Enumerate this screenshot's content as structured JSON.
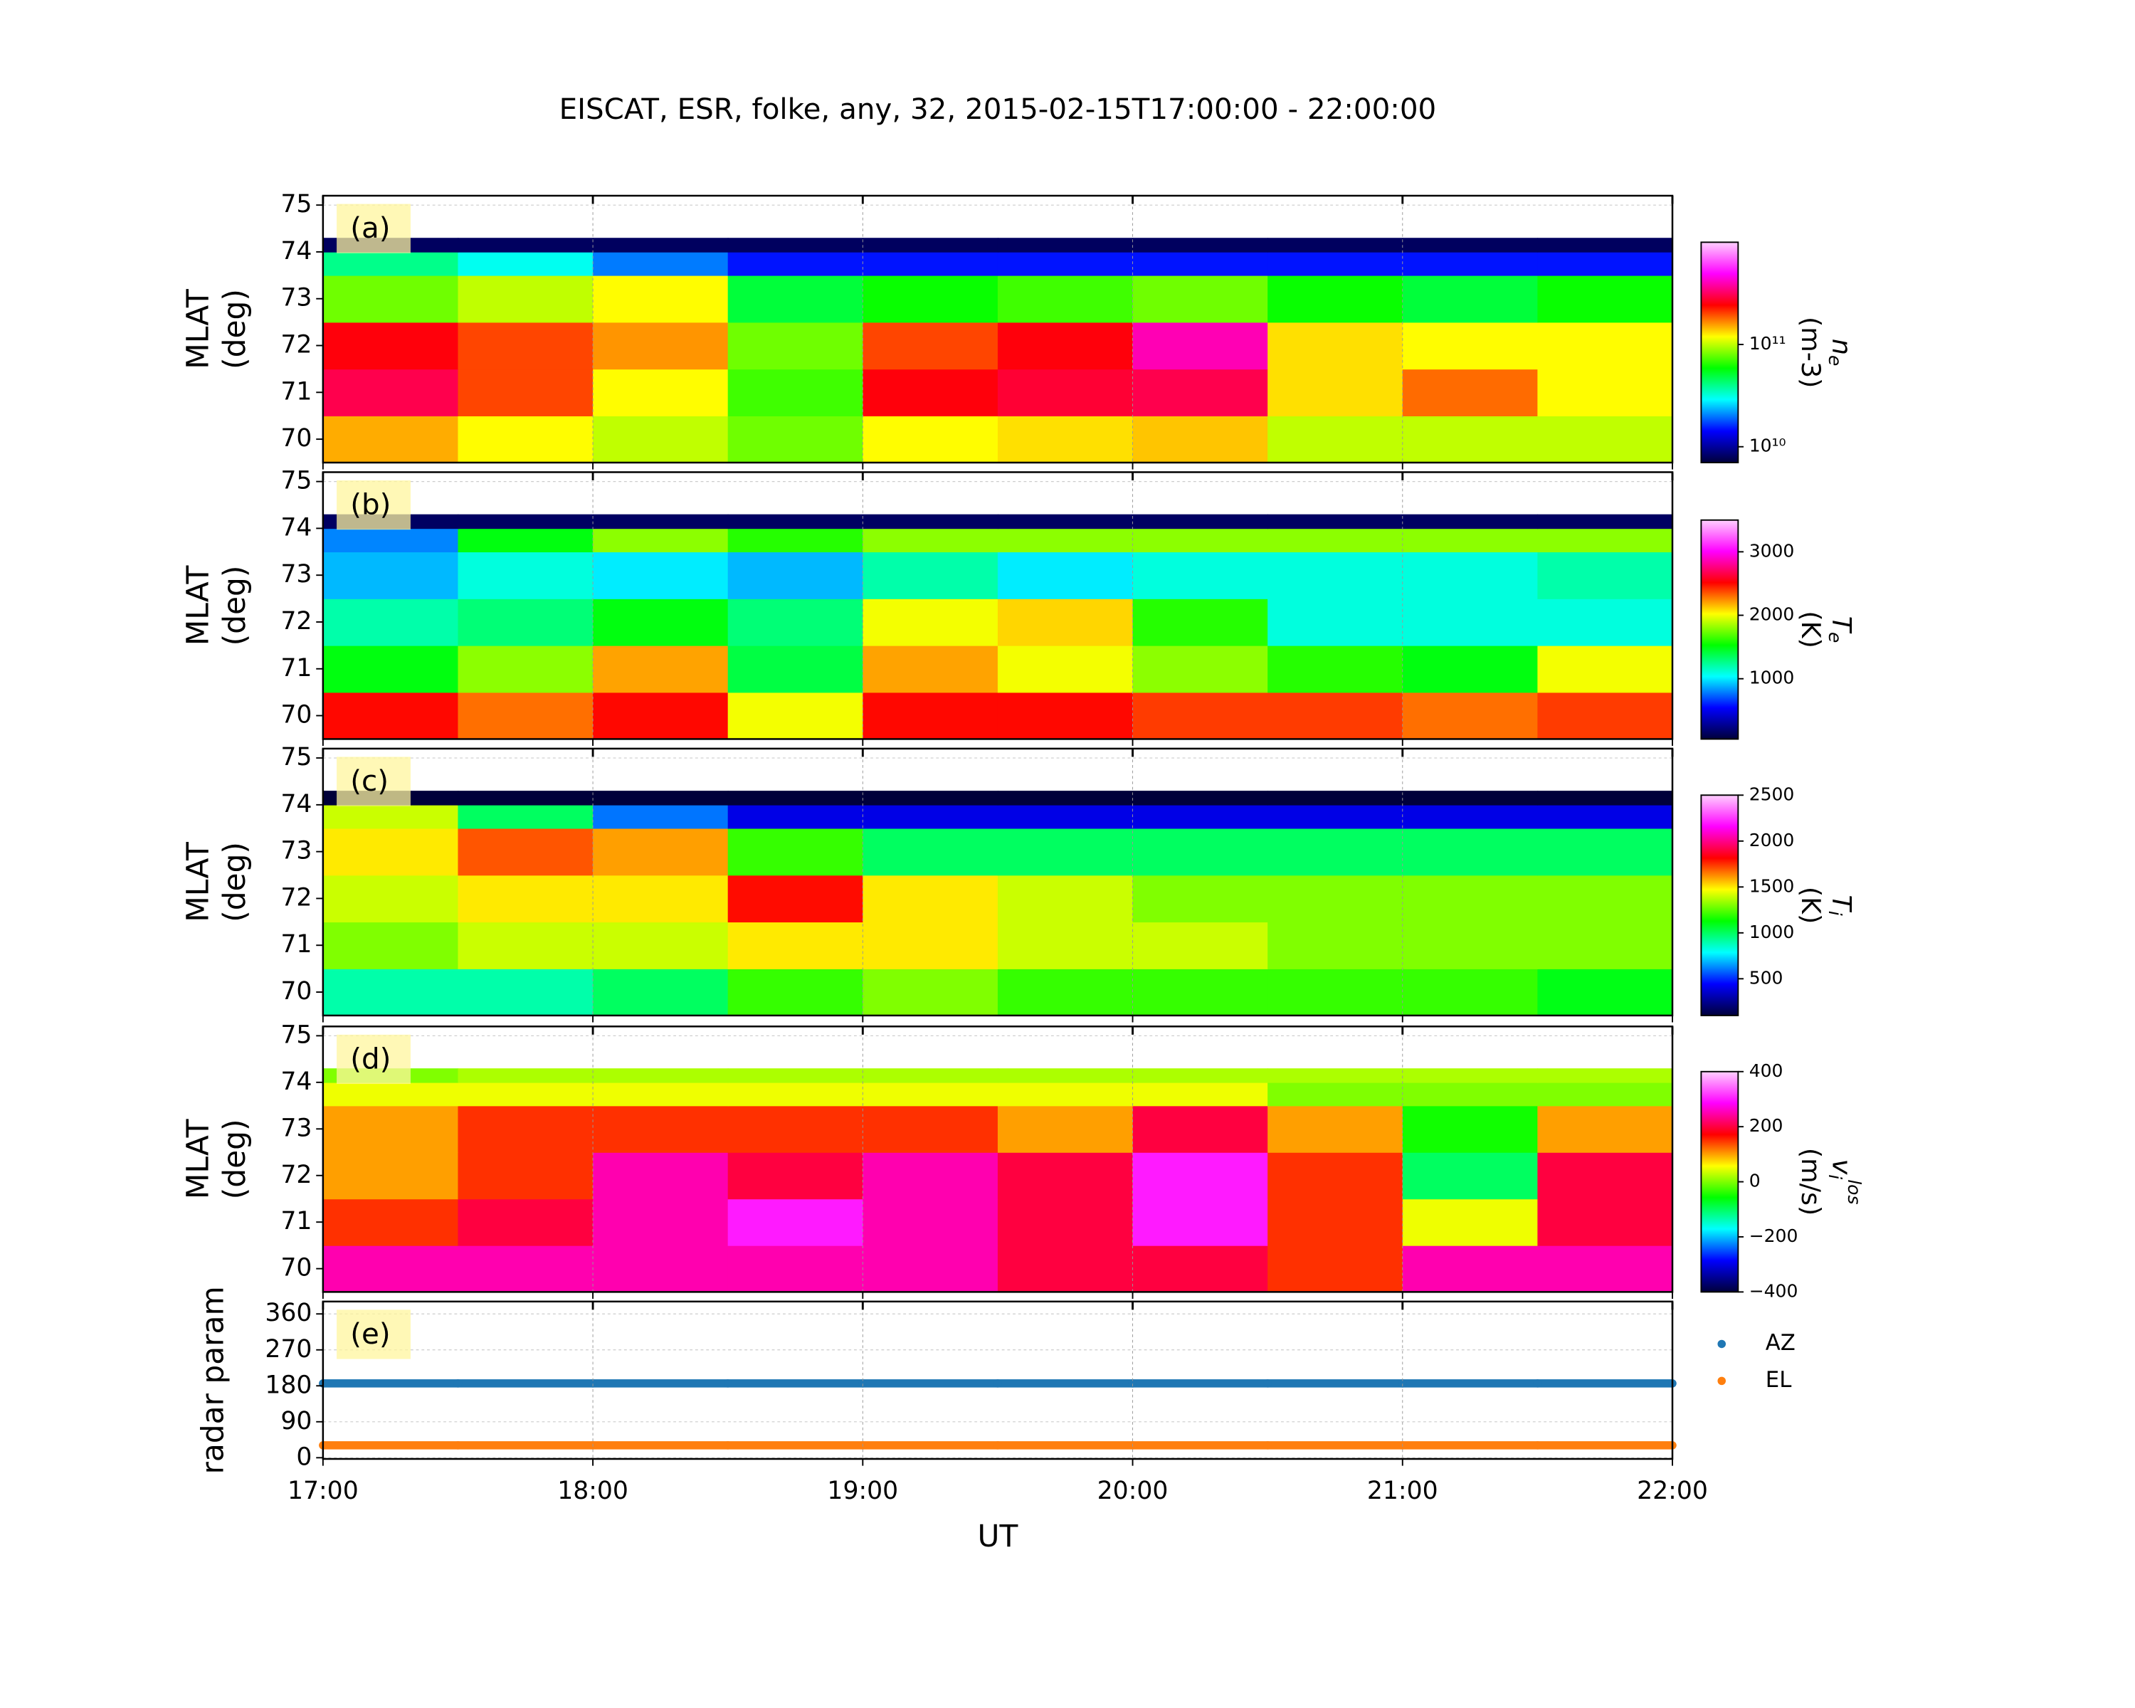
{
  "title": "EISCAT, ESR, folke, any, 32, 2015-02-15T17:00:00 - 22:00:00",
  "xlabel": "UT",
  "xlim": [
    17,
    22
  ],
  "xticks": [
    {
      "value": 17,
      "label": "17:00"
    },
    {
      "value": 18,
      "label": "18:00"
    },
    {
      "value": 19,
      "label": "19:00"
    },
    {
      "value": 20,
      "label": "20:00"
    },
    {
      "value": 21,
      "label": "21:00"
    },
    {
      "value": 22,
      "label": "22:00"
    }
  ],
  "colormap": [
    "#00003a",
    "#0000ff",
    "#00ffff",
    "#00ff00",
    "#ffff00",
    "#ff0000",
    "#ff00ff",
    "#ffd0ff"
  ],
  "chart_data": [
    {
      "type": "heatmap",
      "panel": "(a)",
      "ylabel": [
        "MLAT",
        "(deg)"
      ],
      "ylim": [
        69.5,
        75.2
      ],
      "yticks": [
        70,
        71,
        72,
        73,
        74,
        75
      ],
      "grid": true,
      "xbins": [
        17,
        17.5,
        18,
        18.5,
        19,
        19.5,
        20,
        20.5,
        21,
        21.5,
        22
      ],
      "ybins": [
        69.5,
        70.5,
        71.5,
        72.5,
        73.5,
        74,
        74.3
      ],
      "values": [
        [
          150000000000,
          120000000000,
          100000000000,
          80000000000,
          120000000000,
          130000000000,
          140000000000,
          100000000000,
          100000000000,
          100000000000
        ],
        [
          300000000000,
          200000000000,
          120000000000,
          70000000000,
          250000000000,
          280000000000,
          300000000000,
          130000000000,
          180000000000,
          120000000000
        ],
        [
          250000000000,
          200000000000,
          160000000000,
          80000000000,
          200000000000,
          250000000000,
          400000000000,
          130000000000,
          120000000000,
          120000000000
        ],
        [
          80000000000,
          100000000000,
          120000000000,
          50000000000,
          60000000000,
          70000000000,
          80000000000,
          60000000000,
          50000000000,
          60000000000
        ],
        [
          40000000000,
          30000000000,
          20000000000,
          15000000000,
          15000000000,
          15000000000,
          15000000000,
          15000000000,
          15000000000,
          15000000000
        ],
        [
          8000000000,
          8000000000,
          8000000000,
          8000000000,
          8000000000,
          8000000000,
          8000000000,
          8000000000,
          8000000000,
          8000000000
        ]
      ],
      "clim": [
        7000000000,
        1000000000000
      ],
      "log": true,
      "cticks": [
        {
          "value": 10000000000,
          "label": "10¹⁰"
        },
        {
          "value": 100000000000,
          "label": "10¹¹"
        }
      ],
      "cbar_label": {
        "symbol": "n",
        "subscript": "e",
        "unit": "(m-3)"
      }
    },
    {
      "type": "heatmap",
      "panel": "(b)",
      "ylabel": [
        "MLAT",
        "(deg)"
      ],
      "ylim": [
        69.5,
        75.2
      ],
      "yticks": [
        70,
        71,
        72,
        73,
        74,
        75
      ],
      "grid": true,
      "xbins": [
        17,
        17.5,
        18,
        18.5,
        19,
        19.5,
        20,
        20.5,
        21,
        21.5,
        22
      ],
      "ybins": [
        69.5,
        70.5,
        71.5,
        72.5,
        73.5,
        74,
        74.3
      ],
      "values": [
        [
          2500,
          2300,
          2500,
          2000,
          2500,
          2500,
          2400,
          2400,
          2300,
          2400
        ],
        [
          1500,
          1800,
          2200,
          1400,
          2200,
          2000,
          1800,
          1600,
          1500,
          2000
        ],
        [
          1200,
          1300,
          1500,
          1300,
          2000,
          2100,
          1600,
          1100,
          1100,
          1100
        ],
        [
          900,
          1100,
          1000,
          900,
          1200,
          1000,
          1100,
          1100,
          1100,
          1200
        ],
        [
          800,
          1500,
          1800,
          1600,
          1800,
          1800,
          1800,
          1800,
          1800,
          1800
        ],
        [
          150,
          150,
          150,
          150,
          150,
          150,
          150,
          150,
          150,
          150
        ]
      ],
      "clim": [
        50,
        3500
      ],
      "log": false,
      "cticks": [
        1000,
        2000,
        3000
      ],
      "cbar_label": {
        "symbol": "T",
        "subscript": "e",
        "unit": "(K)"
      }
    },
    {
      "type": "heatmap",
      "panel": "(c)",
      "ylabel": [
        "MLAT",
        "(deg)"
      ],
      "ylim": [
        69.5,
        75.2
      ],
      "yticks": [
        70,
        71,
        72,
        73,
        74,
        75
      ],
      "grid": true,
      "xbins": [
        17,
        17.5,
        18,
        18.5,
        19,
        19.5,
        20,
        20.5,
        21,
        21.5,
        22
      ],
      "ybins": [
        69.5,
        70.5,
        71.5,
        72.5,
        73.5,
        74,
        74.3
      ],
      "values": [
        [
          900,
          900,
          1000,
          1200,
          1300,
          1200,
          1200,
          1200,
          1200,
          1100
        ],
        [
          1300,
          1400,
          1400,
          1500,
          1500,
          1400,
          1400,
          1300,
          1300,
          1300
        ],
        [
          1400,
          1500,
          1500,
          1800,
          1500,
          1400,
          1300,
          1300,
          1300,
          1300
        ],
        [
          1500,
          1700,
          1600,
          1200,
          1000,
          1000,
          1000,
          1000,
          1000,
          1000
        ],
        [
          1400,
          1000,
          600,
          400,
          400,
          400,
          400,
          400,
          400,
          400
        ],
        [
          100,
          100,
          100,
          100,
          100,
          100,
          100,
          100,
          100,
          100
        ]
      ],
      "clim": [
        100,
        2500
      ],
      "log": false,
      "cticks": [
        500,
        1000,
        1500,
        2000,
        2500
      ],
      "cbar_label": {
        "symbol": "T",
        "subscript": "i",
        "unit": "(K)"
      }
    },
    {
      "type": "heatmap",
      "panel": "(d)",
      "ylabel": [
        "MLAT",
        "(deg)"
      ],
      "ylim": [
        69.5,
        75.2
      ],
      "yticks": [
        70,
        71,
        72,
        73,
        74,
        75
      ],
      "grid": true,
      "xbins": [
        17,
        17.5,
        18,
        18.5,
        19,
        19.5,
        20,
        20.5,
        21,
        21.5,
        22
      ],
      "ybins": [
        69.5,
        70.5,
        71.5,
        72.5,
        73.5,
        74,
        74.3
      ],
      "values": [
        [
          250,
          250,
          250,
          250,
          250,
          200,
          200,
          150,
          250,
          250
        ],
        [
          150,
          200,
          250,
          300,
          250,
          200,
          300,
          150,
          50,
          200
        ],
        [
          100,
          150,
          250,
          200,
          250,
          200,
          300,
          150,
          -100,
          200
        ],
        [
          100,
          150,
          150,
          150,
          150,
          100,
          200,
          100,
          -50,
          100
        ],
        [
          50,
          50,
          50,
          50,
          50,
          50,
          50,
          0,
          0,
          0
        ],
        [
          0,
          20,
          20,
          20,
          20,
          20,
          20,
          20,
          20,
          20
        ]
      ],
      "clim": [
        -400,
        400
      ],
      "log": false,
      "cticks": [
        {
          "value": -400,
          "label": "−400"
        },
        {
          "value": -200,
          "label": "−200"
        },
        0,
        200,
        400
      ],
      "cbar_label": {
        "symbol": "v",
        "subscript": "i",
        "superscript": "los",
        "unit": "(m/s)"
      }
    },
    {
      "type": "scatter",
      "panel": "(e)",
      "ylabel": [
        "radar param"
      ],
      "ylim": [
        -3,
        391
      ],
      "yticks": [
        0,
        90,
        180,
        270,
        360
      ],
      "grid": true,
      "x": [
        17,
        17.5,
        18,
        18.5,
        19,
        19.5,
        20,
        20.5,
        21,
        21.5,
        22
      ],
      "series": [
        {
          "name": "AZ",
          "color": "#1f77b4",
          "values": [
            186,
            186,
            186,
            186,
            186,
            186,
            186,
            186,
            186,
            186,
            186
          ]
        },
        {
          "name": "EL",
          "color": "#ff7f0e",
          "values": [
            31,
            31,
            31,
            31,
            31,
            31,
            31,
            31,
            31,
            31,
            31
          ]
        }
      ]
    }
  ]
}
